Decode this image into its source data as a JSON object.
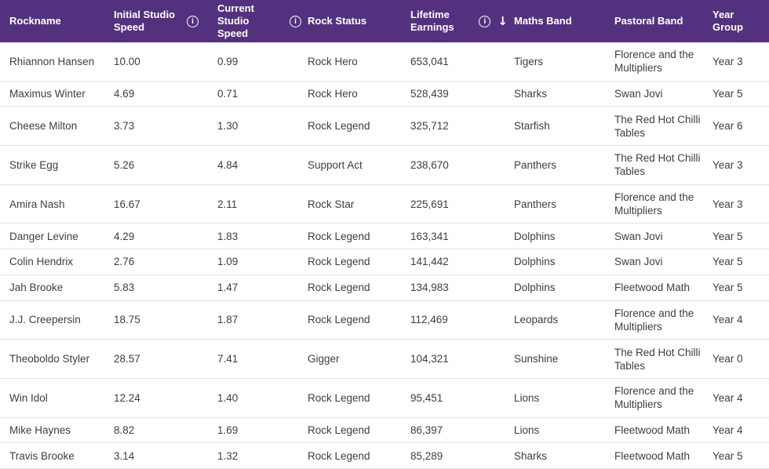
{
  "colors": {
    "header_bg": "#53317f",
    "header_text": "#ffffff",
    "body_text": "#3e3e3e",
    "row_divider": "#e3e3e3"
  },
  "icons": {
    "info_glyph": "i",
    "sort_desc_glyph": "↓"
  },
  "table": {
    "column_keys": [
      "rockname",
      "initial_studio_speed",
      "current_studio_speed",
      "rock_status",
      "lifetime_earnings",
      "maths_band",
      "pastoral_band",
      "year_group"
    ],
    "columns": [
      {
        "label": "Rockname",
        "info": false,
        "sorted": null
      },
      {
        "label": "Initial Studio Speed",
        "info": true,
        "sorted": null
      },
      {
        "label": "Current Studio Speed",
        "info": true,
        "sorted": null
      },
      {
        "label": "Rock Status",
        "info": false,
        "sorted": null
      },
      {
        "label": "Lifetime Earnings",
        "info": true,
        "sorted": "desc"
      },
      {
        "label": "Maths Band",
        "info": false,
        "sorted": null
      },
      {
        "label": "Pastoral Band",
        "info": false,
        "sorted": null
      },
      {
        "label": "Year Group",
        "info": false,
        "sorted": null
      }
    ],
    "rows": [
      [
        "Rhiannon Hansen",
        "10.00",
        "0.99",
        "Rock Hero",
        "653,041",
        "Tigers",
        "Florence and the Multipliers",
        "Year 3"
      ],
      [
        "Maximus Winter",
        "4.69",
        "0.71",
        "Rock Hero",
        "528,439",
        "Sharks",
        "Swan Jovi",
        "Year 5"
      ],
      [
        "Cheese Milton",
        "3.73",
        "1.30",
        "Rock Legend",
        "325,712",
        "Starfish",
        "The Red Hot Chilli Tables",
        "Year 6"
      ],
      [
        "Strike Egg",
        "5.26",
        "4.84",
        "Support Act",
        "238,670",
        "Panthers",
        "The Red Hot Chilli Tables",
        "Year 3"
      ],
      [
        "Amira Nash",
        "16.67",
        "2.11",
        "Rock Star",
        "225,691",
        "Panthers",
        "Florence and the Multipliers",
        "Year 3"
      ],
      [
        "Danger Levine",
        "4.29",
        "1.83",
        "Rock Legend",
        "163,341",
        "Dolphins",
        "Swan Jovi",
        "Year 5"
      ],
      [
        "Colin Hendrix",
        "2.76",
        "1.09",
        "Rock Legend",
        "141,442",
        "Dolphins",
        "Swan Jovi",
        "Year 5"
      ],
      [
        "Jah Brooke",
        "5.83",
        "1.47",
        "Rock Legend",
        "134,983",
        "Dolphins",
        "Fleetwood Math",
        "Year 5"
      ],
      [
        "J.J. Creepersin",
        "18.75",
        "1.87",
        "Rock Legend",
        "112,469",
        "Leopards",
        "Florence and the Multipliers",
        "Year 4"
      ],
      [
        "Theoboldo Styler",
        "28.57",
        "7.41",
        "Gigger",
        "104,321",
        "Sunshine",
        "The Red Hot Chilli Tables",
        "Year 0"
      ],
      [
        "Win Idol",
        "12.24",
        "1.40",
        "Rock Legend",
        "95,451",
        "Lions",
        "Florence and the Multipliers",
        "Year 4"
      ],
      [
        "Mike Haynes",
        "8.82",
        "1.69",
        "Rock Legend",
        "86,397",
        "Lions",
        "Fleetwood Math",
        "Year 4"
      ],
      [
        "Travis Brooke",
        "3.14",
        "1.32",
        "Rock Legend",
        "85,289",
        "Sharks",
        "Fleetwood Math",
        "Year 5"
      ]
    ]
  }
}
